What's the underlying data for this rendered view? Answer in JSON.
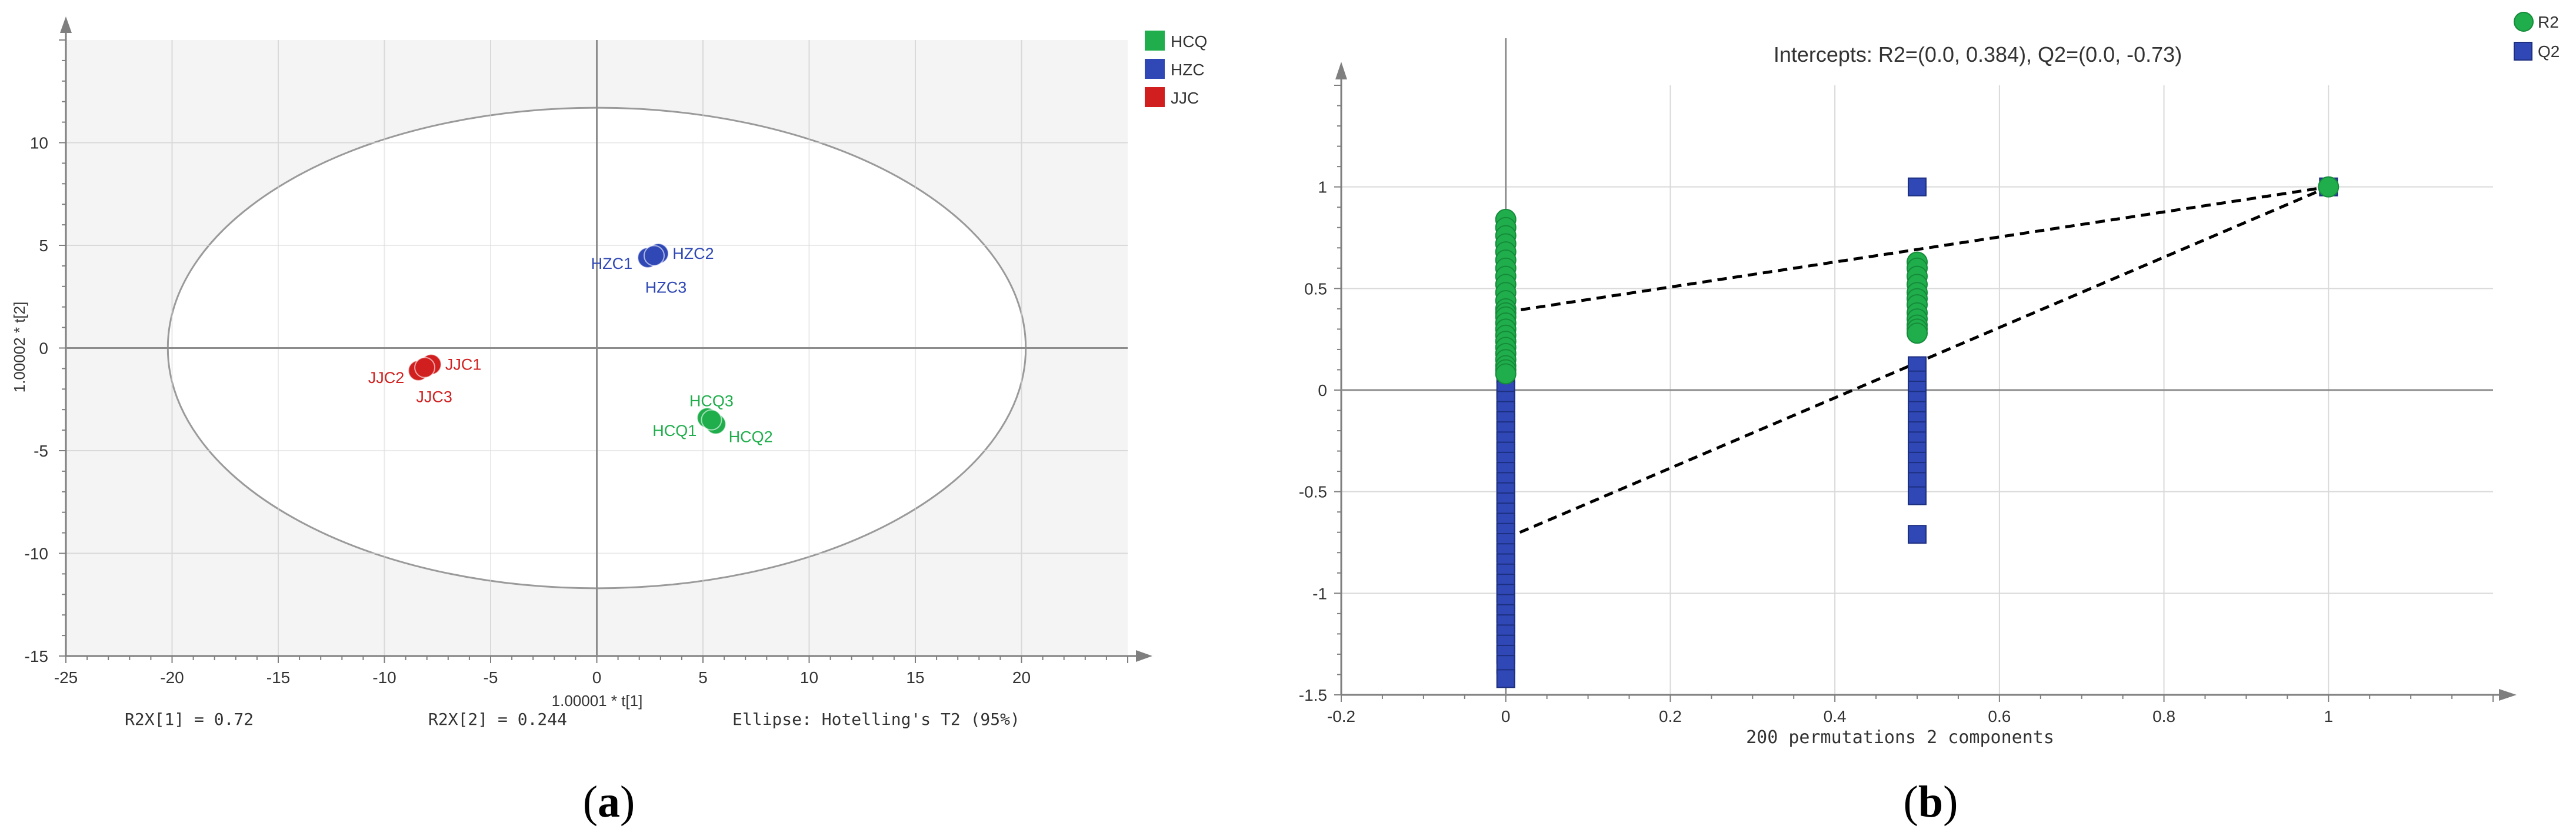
{
  "colors": {
    "green": "#1fae4b",
    "blue": "#2f48b5",
    "red": "#d11f1f",
    "grey_bg": "#f4f4f4",
    "grid": "#d9d9d9",
    "axis": "#7f7f7f"
  },
  "panel_a": {
    "caption_left": "(",
    "caption_letter": "a",
    "caption_right": ")",
    "legend": [
      "HCQ",
      "HZC",
      "JJC"
    ],
    "footer": {
      "r2x1": "R2X[1] = 0.72",
      "r2x2": "R2X[2] = 0.244",
      "ellipse": "Ellipse: Hotelling's T2 (95%)"
    }
  },
  "panel_b": {
    "caption_left": "(",
    "caption_letter": "b",
    "caption_right": ")",
    "legend": [
      "R2",
      "Q2"
    ]
  },
  "chart_data": [
    {
      "type": "scatter",
      "title": "",
      "xlabel": "1.00001 * t[1]",
      "ylabel": "1.00002 * t[2]",
      "xlim": [
        -25,
        25
      ],
      "ylim": [
        -15,
        15
      ],
      "xticks": [
        -25,
        -20,
        -15,
        -10,
        -5,
        0,
        5,
        10,
        15,
        20
      ],
      "yticks": [
        -15,
        -10,
        -5,
        0,
        5,
        10
      ],
      "grid": true,
      "legend_position": "top-right",
      "ellipse": {
        "center": [
          0,
          0
        ],
        "rx": 20.2,
        "ry": 11.7
      },
      "series": [
        {
          "name": "HCQ",
          "color": "#1fae4b",
          "points": [
            {
              "label": "HCQ1",
              "x": 5.2,
              "y": -3.4
            },
            {
              "label": "HCQ2",
              "x": 5.6,
              "y": -3.7
            },
            {
              "label": "HCQ3",
              "x": 5.4,
              "y": -3.5
            }
          ]
        },
        {
          "name": "HZC",
          "color": "#2f48b5",
          "points": [
            {
              "label": "HZC1",
              "x": 2.4,
              "y": 4.4
            },
            {
              "label": "HZC2",
              "x": 2.9,
              "y": 4.6
            },
            {
              "label": "HZC3",
              "x": 2.7,
              "y": 4.5
            }
          ]
        },
        {
          "name": "JJC",
          "color": "#d11f1f",
          "points": [
            {
              "label": "JJC1",
              "x": -7.8,
              "y": -0.8
            },
            {
              "label": "JJC2",
              "x": -8.4,
              "y": -1.1
            },
            {
              "label": "JJC3",
              "x": -8.1,
              "y": -0.95
            }
          ]
        }
      ]
    },
    {
      "type": "scatter",
      "title": "Intercepts: R2=(0.0, 0.384), Q2=(0.0, -0.73)",
      "xlabel": "200 permutations 2 components",
      "ylabel": "",
      "xlim": [
        -0.2,
        1.2
      ],
      "ylim": [
        -1.5,
        1.5
      ],
      "xticks": [
        -0.2,
        0,
        0.2,
        0.4,
        0.6,
        0.8,
        1
      ],
      "yticks": [
        -1.5,
        -1,
        -0.5,
        0,
        0.5,
        1
      ],
      "grid": true,
      "legend_position": "top-right",
      "series": [
        {
          "name": "R2",
          "color": "#1fae4b",
          "marker": "circle",
          "x": [
            0,
            0,
            0,
            0,
            0,
            0,
            0,
            0,
            0,
            0,
            0,
            0,
            0,
            0,
            0,
            0,
            0,
            0,
            0,
            0,
            0,
            0,
            0,
            0,
            0.5,
            0.5,
            0.5,
            0.5,
            0.5,
            0.5,
            0.5,
            0.5,
            0.5,
            0.5,
            0.5,
            0.5,
            1
          ],
          "y": [
            0.84,
            0.8,
            0.76,
            0.72,
            0.68,
            0.64,
            0.6,
            0.56,
            0.52,
            0.48,
            0.44,
            0.4,
            0.38,
            0.36,
            0.33,
            0.3,
            0.27,
            0.24,
            0.21,
            0.18,
            0.15,
            0.12,
            0.1,
            0.08,
            0.63,
            0.6,
            0.56,
            0.52,
            0.48,
            0.45,
            0.42,
            0.38,
            0.35,
            0.32,
            0.3,
            0.28,
            1.0
          ]
        },
        {
          "name": "Q2",
          "color": "#2f48b5",
          "marker": "square",
          "x": [
            0,
            0,
            0,
            0,
            0,
            0,
            0,
            0,
            0,
            0,
            0,
            0,
            0,
            0,
            0,
            0,
            0,
            0,
            0,
            0,
            0,
            0,
            0,
            0,
            0,
            0,
            0,
            0,
            0,
            0,
            0.5,
            0.5,
            0.5,
            0.5,
            0.5,
            0.5,
            0.5,
            0.5,
            0.5,
            0.5,
            0.5,
            0.5,
            0.5,
            0.5,
            0.5,
            1
          ],
          "y": [
            0.08,
            0.0,
            -0.05,
            -0.1,
            -0.15,
            -0.2,
            -0.25,
            -0.3,
            -0.35,
            -0.4,
            -0.45,
            -0.5,
            -0.55,
            -0.6,
            -0.65,
            -0.7,
            -0.75,
            -0.8,
            -0.85,
            -0.9,
            -0.95,
            -1.0,
            -1.05,
            -1.1,
            -1.15,
            -1.2,
            -1.25,
            -1.3,
            -1.35,
            -1.42,
            1.0,
            0.12,
            0.05,
            0.0,
            -0.05,
            -0.1,
            -0.15,
            -0.2,
            -0.25,
            -0.3,
            -0.35,
            -0.4,
            -0.45,
            -0.52,
            -0.71,
            1.0
          ]
        }
      ],
      "regression_lines": [
        {
          "name": "R2",
          "from": [
            0,
            0.384
          ],
          "to": [
            1,
            1.0
          ]
        },
        {
          "name": "Q2",
          "from": [
            0,
            -0.73
          ],
          "to": [
            1,
            1.0
          ]
        }
      ]
    }
  ]
}
